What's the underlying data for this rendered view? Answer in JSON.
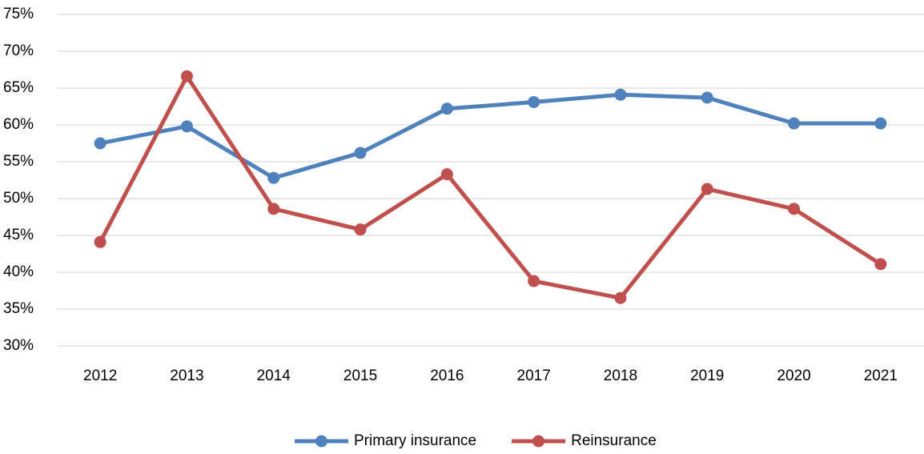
{
  "chart_data": {
    "type": "line",
    "categories": [
      "2012",
      "2013",
      "2014",
      "2015",
      "2016",
      "2017",
      "2018",
      "2019",
      "2020",
      "2021"
    ],
    "series": [
      {
        "name": "Primary insurance",
        "color": "#4f81bd",
        "values": [
          57.5,
          59.8,
          52.8,
          56.2,
          62.2,
          63.1,
          64.1,
          63.7,
          60.2,
          60.2
        ]
      },
      {
        "name": "Reinsurance",
        "color": "#c0504d",
        "values": [
          44.1,
          66.6,
          48.6,
          45.8,
          53.3,
          38.8,
          36.5,
          51.3,
          48.6,
          41.1
        ]
      }
    ],
    "ylim": [
      30,
      75
    ],
    "yticks": [
      {
        "value": 30,
        "label": "30%"
      },
      {
        "value": 35,
        "label": "35%"
      },
      {
        "value": 40,
        "label": "40%"
      },
      {
        "value": 45,
        "label": "45%"
      },
      {
        "value": 50,
        "label": "50%"
      },
      {
        "value": 55,
        "label": "55%"
      },
      {
        "value": 60,
        "label": "60%"
      },
      {
        "value": 65,
        "label": "65%"
      },
      {
        "value": 70,
        "label": "70%"
      },
      {
        "value": 75,
        "label": "75%"
      }
    ],
    "grid": true,
    "legend": "bottom"
  }
}
